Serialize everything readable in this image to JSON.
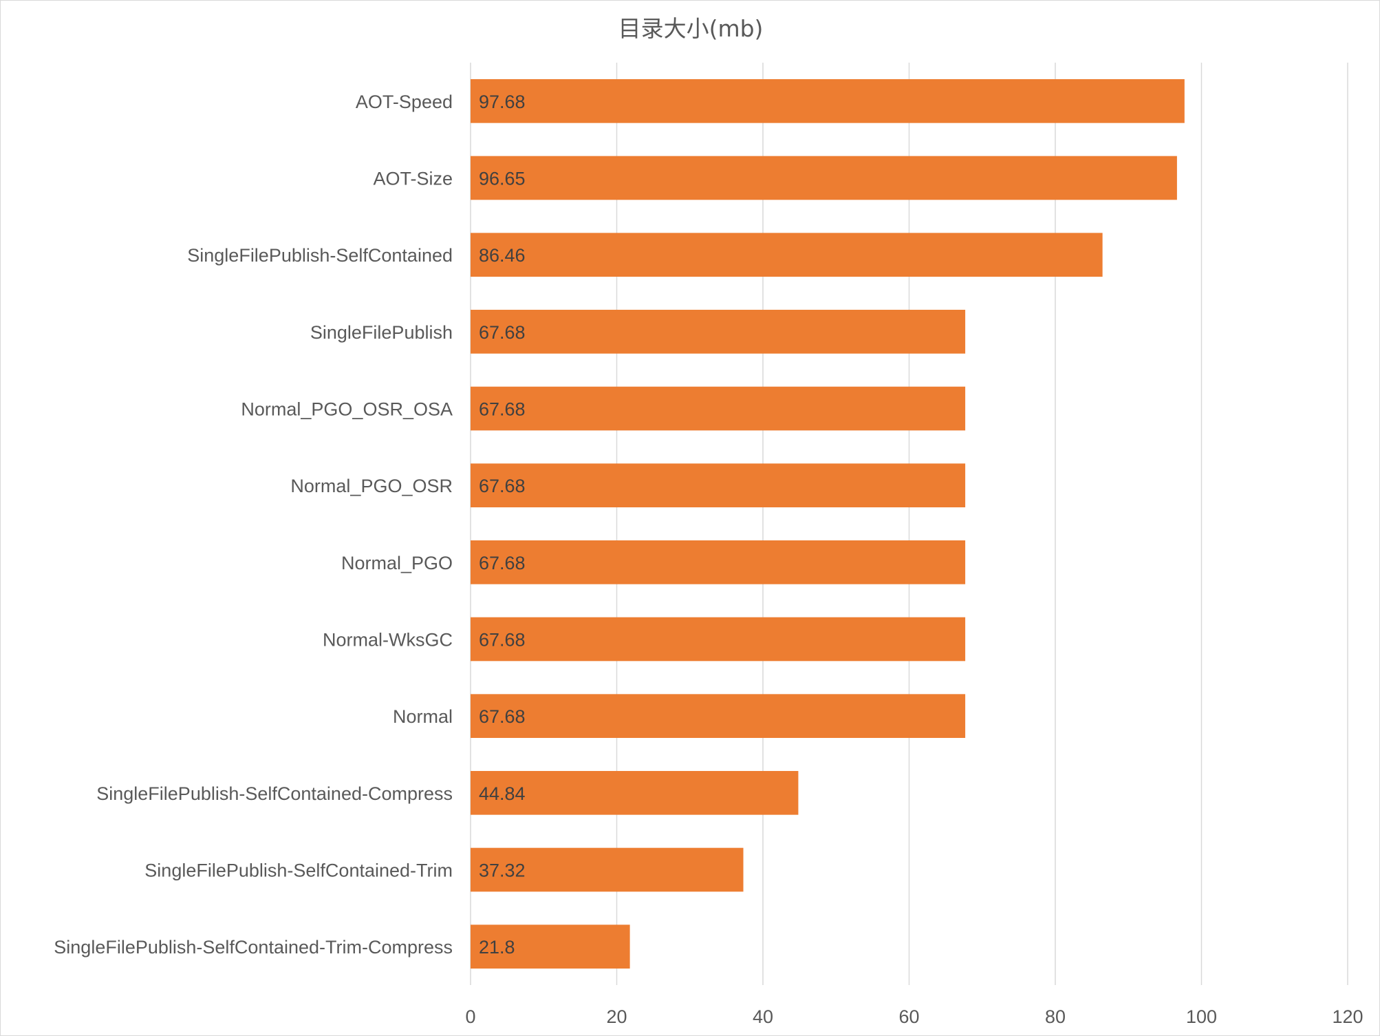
{
  "chart_data": {
    "type": "bar",
    "orientation": "horizontal",
    "title": "目录大小(mb)",
    "xlabel": "",
    "ylabel": "",
    "xlim": [
      0,
      120
    ],
    "ticks": [
      "0",
      "20",
      "40",
      "60",
      "80",
      "100",
      "120"
    ],
    "tick_values": [
      0,
      20,
      40,
      60,
      80,
      100,
      120
    ],
    "grid": true,
    "legend": "none",
    "bar_color": "#ED7D31",
    "categories": [
      "AOT-Speed",
      "AOT-Size",
      "SingleFilePublish-SelfContained",
      "SingleFilePublish",
      "Normal_PGO_OSR_OSA",
      "Normal_PGO_OSR",
      "Normal_PGO",
      "Normal-WksGC",
      "Normal",
      "SingleFilePublish-SelfContained-Compress",
      "SingleFilePublish-SelfContained-Trim",
      "SingleFilePublish-SelfContained-Trim-Compress"
    ],
    "values": [
      97.68,
      96.65,
      86.46,
      67.68,
      67.68,
      67.68,
      67.68,
      67.68,
      67.68,
      44.84,
      37.32,
      21.8
    ],
    "data_labels": [
      "97.68",
      "96.65",
      "86.46",
      "67.68",
      "67.68",
      "67.68",
      "67.68",
      "67.68",
      "67.68",
      "44.84",
      "37.32",
      "21.8"
    ]
  }
}
